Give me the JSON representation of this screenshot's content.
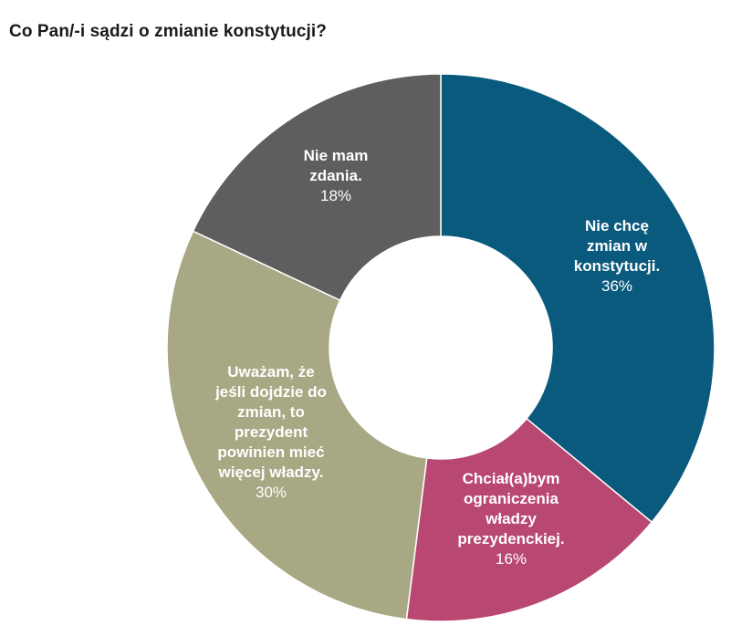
{
  "title": "Co Pan/-i sądzi o zmianie konstytucji?",
  "chart_data": {
    "type": "pie",
    "donut": true,
    "title": "Co Pan/-i sądzi o zmianie konstytucji?",
    "slices": [
      {
        "label": "Nie chcę zmian w konstytucji.",
        "label_lines": [
          "Nie chcę",
          "zmian w",
          "konstytucji."
        ],
        "value": 36,
        "value_label": "36%",
        "color": "#0a5a7e"
      },
      {
        "label": "Chciał(a)bym ograniczenia władzy prezydenckiej.",
        "label_lines": [
          "Chciał(a)bym",
          "ograniczenia",
          "władzy",
          "prezydenckiej."
        ],
        "value": 16,
        "value_label": "16%",
        "color": "#b84772"
      },
      {
        "label": "Uważam, że jeśli dojdzie do zmian, to prezydent powinien mieć więcej władzy.",
        "label_lines": [
          "Uważam, że",
          "jeśli dojdzie do",
          "zmian, to",
          "prezydent",
          "powinien mieć",
          "więcej władzy."
        ],
        "value": 30,
        "value_label": "30%",
        "color": "#a8a884"
      },
      {
        "label": "Nie mam zdania.",
        "label_lines": [
          "Nie mam",
          "zdania."
        ],
        "value": 18,
        "value_label": "18%",
        "color": "#5e5e5e"
      }
    ]
  }
}
